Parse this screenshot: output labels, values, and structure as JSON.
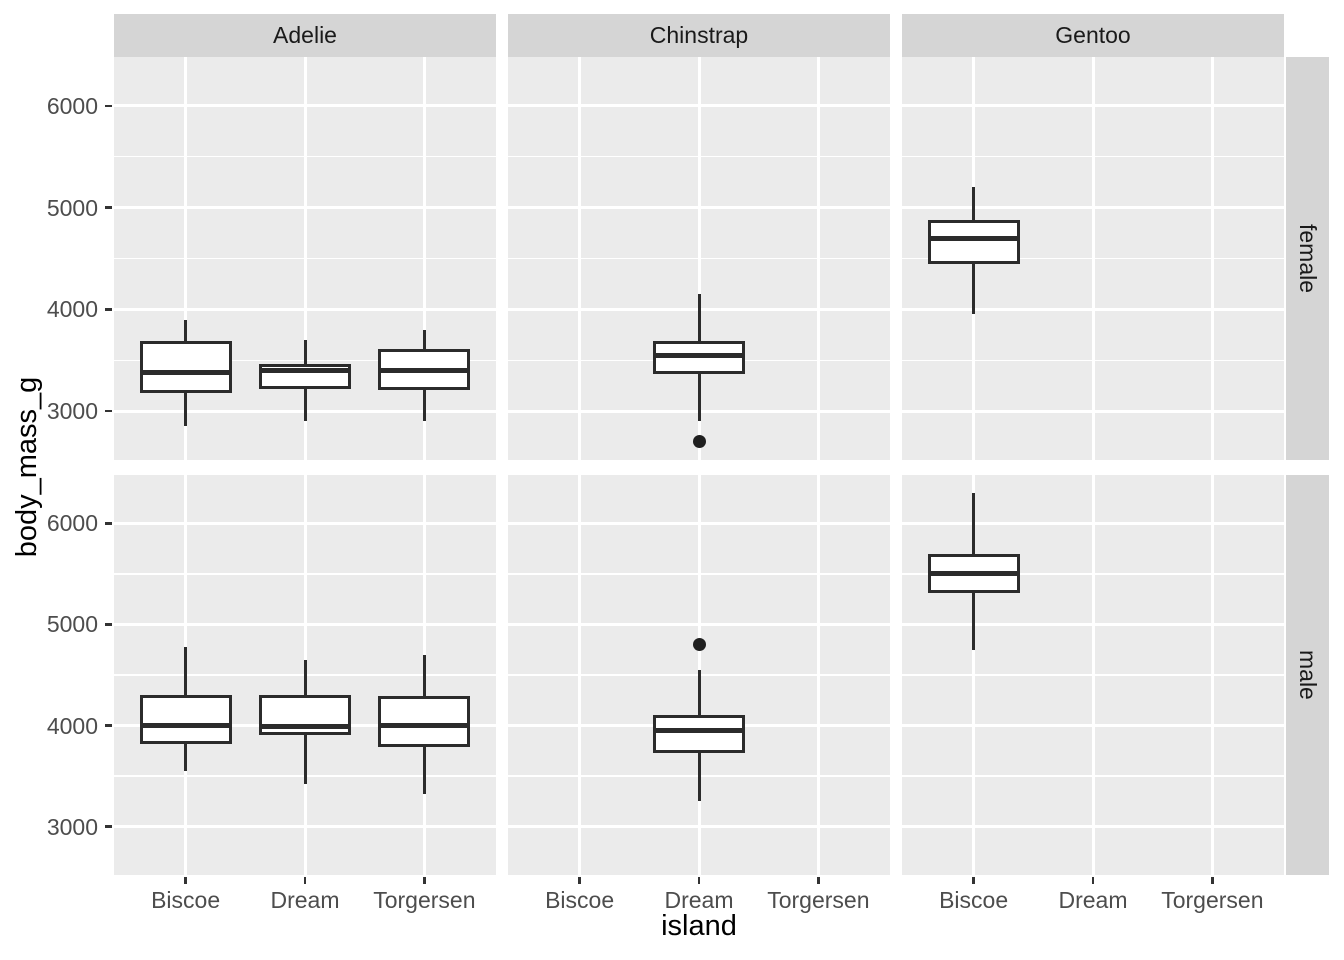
{
  "chart_data": {
    "type": "boxplot",
    "title": "",
    "xlabel": "island",
    "ylabel": "body_mass_g",
    "facet_columns": [
      "Adelie",
      "Chinstrap",
      "Gentoo"
    ],
    "facet_rows": [
      "female",
      "male"
    ],
    "categories": [
      "Biscoe",
      "Dream",
      "Torgersen"
    ],
    "y_axis": {
      "ticks": [
        3000,
        4000,
        5000,
        6000
      ],
      "tick_labels": [
        "3000",
        "4000",
        "5000",
        "6000"
      ],
      "minor_ticks": [
        3500,
        4500,
        5500
      ],
      "domain": [
        2520,
        6480
      ],
      "grid": true
    },
    "legend": "none",
    "boxes": [
      {
        "species": "Adelie",
        "sex": "female",
        "island": "Biscoe",
        "whisker_low": 2850,
        "q1": 3181,
        "median": 3375,
        "q3": 3694,
        "whisker_high": 3900,
        "outliers": []
      },
      {
        "species": "Adelie",
        "sex": "female",
        "island": "Dream",
        "whisker_low": 2900,
        "q1": 3213,
        "median": 3400,
        "q3": 3463,
        "whisker_high": 3700,
        "outliers": []
      },
      {
        "species": "Adelie",
        "sex": "female",
        "island": "Torgersen",
        "whisker_low": 2900,
        "q1": 3206,
        "median": 3400,
        "q3": 3613,
        "whisker_high": 3800,
        "outliers": []
      },
      {
        "species": "Chinstrap",
        "sex": "female",
        "island": "Dream",
        "whisker_low": 2900,
        "q1": 3363,
        "median": 3550,
        "q3": 3694,
        "whisker_high": 4150,
        "outliers": [
          2700
        ]
      },
      {
        "species": "Gentoo",
        "sex": "female",
        "island": "Biscoe",
        "whisker_low": 3950,
        "q1": 4450,
        "median": 4700,
        "q3": 4875,
        "whisker_high": 5200,
        "outliers": []
      },
      {
        "species": "Adelie",
        "sex": "male",
        "island": "Biscoe",
        "whisker_low": 3550,
        "q1": 3813,
        "median": 4000,
        "q3": 4306,
        "whisker_high": 4775,
        "outliers": []
      },
      {
        "species": "Adelie",
        "sex": "male",
        "island": "Dream",
        "whisker_low": 3425,
        "q1": 3906,
        "median": 3988,
        "q3": 4300,
        "whisker_high": 4650,
        "outliers": []
      },
      {
        "species": "Adelie",
        "sex": "male",
        "island": "Torgersen",
        "whisker_low": 3325,
        "q1": 3788,
        "median": 4000,
        "q3": 4288,
        "whisker_high": 4700,
        "outliers": []
      },
      {
        "species": "Chinstrap",
        "sex": "male",
        "island": "Dream",
        "whisker_low": 3250,
        "q1": 3731,
        "median": 3950,
        "q3": 4100,
        "whisker_high": 4550,
        "outliers": [
          4800
        ]
      },
      {
        "species": "Gentoo",
        "sex": "male",
        "island": "Biscoe",
        "whisker_low": 4750,
        "q1": 5313,
        "median": 5500,
        "q3": 5700,
        "whisker_high": 6300,
        "outliers": []
      }
    ],
    "style": {
      "panel_bg": "#EBEBEB",
      "strip_bg": "#D5D5D5",
      "grid_color": "#FFFFFF",
      "box_color": "#2B2B2B",
      "box_fill": "#FFFFFF",
      "outlier_color": "#1F1F1F",
      "tick_color": "#333333",
      "tick_label_color": "#4D4D4D",
      "strip_text_color": "#1A1A1A",
      "axis_title_color": "#000000"
    }
  }
}
